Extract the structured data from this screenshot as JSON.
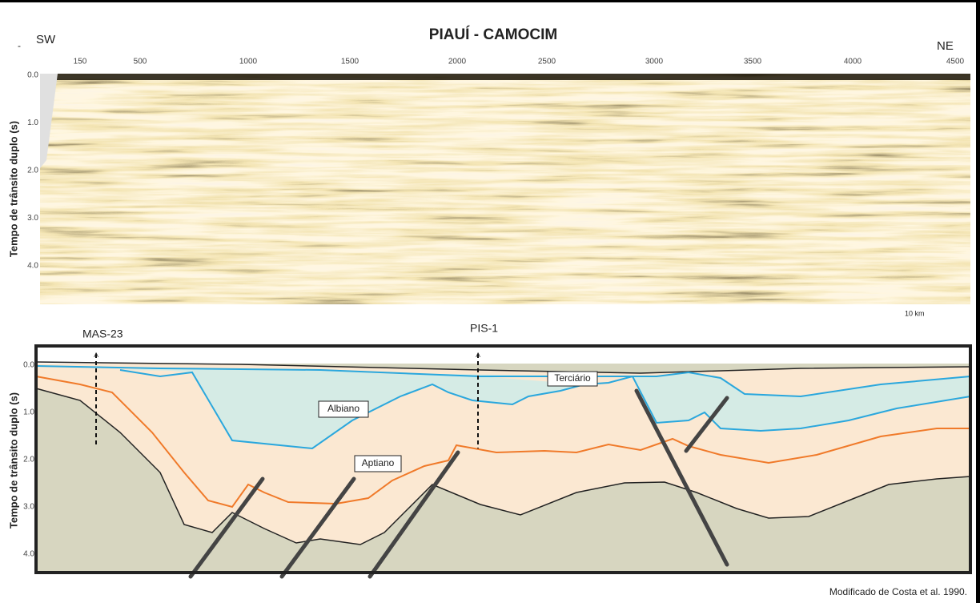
{
  "header": {
    "title": "PIAUÍ - CAMOCIM",
    "left": "SW",
    "right": "NE",
    "dash": "-"
  },
  "seismic": {
    "x_ticks": [
      "150",
      "500",
      "1000",
      "1500",
      "2000",
      "2500",
      "3000",
      "3500",
      "4000",
      "4500"
    ],
    "y_ticks": [
      "0.0",
      "1.0",
      "2.0",
      "3.0",
      "4.0"
    ],
    "y_label": "Tempo de trânsito duplo (s)",
    "scale": "10 km"
  },
  "section": {
    "wells": [
      "MAS-23",
      "PIS-1"
    ],
    "units": [
      "Terciário",
      "Albiano",
      "Aptiano"
    ],
    "y_ticks": [
      "0.0",
      "1.0",
      "2.0",
      "3.0",
      "4.0"
    ],
    "y_label": "Tempo de trânsito duplo (s)"
  },
  "credit": "Modificado de Costa et al. 1990."
}
